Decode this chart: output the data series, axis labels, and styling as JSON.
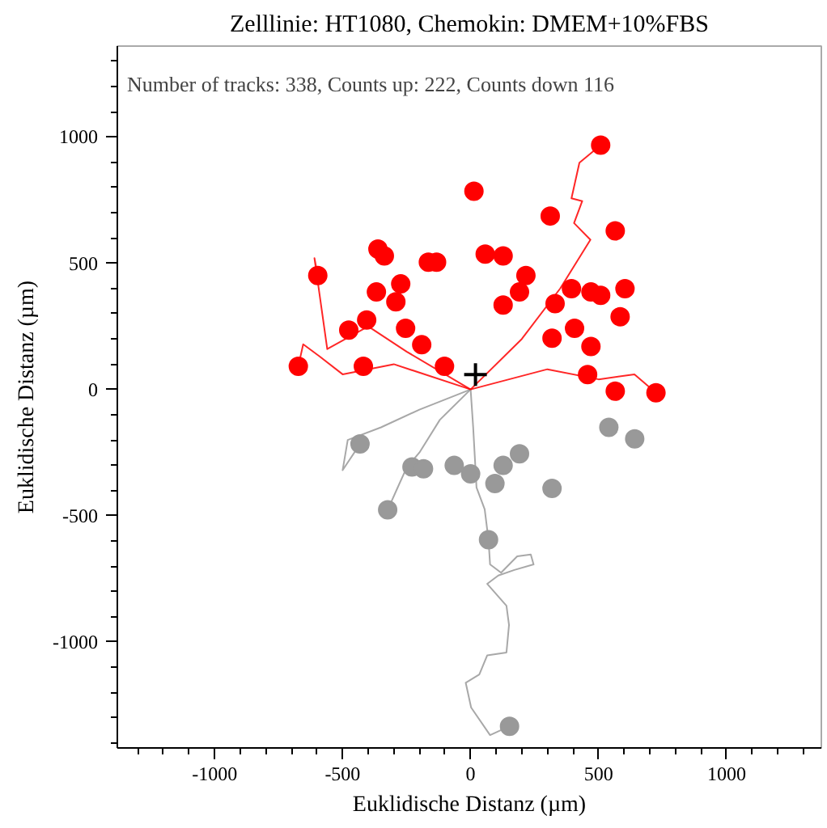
{
  "chart_data": {
    "type": "scatter",
    "title": "Zelllinie: HT1080, Chemokin: DMEM+10%FBS",
    "xlabel": "Euklidische Distanz (µm)",
    "ylabel": "Euklidische Distanz (µm)",
    "annotations": [
      "Number of tracks: 338, Counts up: 222, Counts down 116"
    ],
    "xlim": [
      -1380,
      1370
    ],
    "ylim": [
      -1420,
      1360
    ],
    "xticks": [
      -1000,
      -500,
      0,
      500,
      1000
    ],
    "yticks": [
      -1000,
      -500,
      0,
      500,
      1000
    ],
    "grid": false,
    "series": [
      {
        "type": "line",
        "color": "#999999",
        "x": [
          0,
          10,
          23,
          55,
          70,
          76,
          119,
          182,
          235,
          246,
          171,
          108,
          65,
          140,
          150,
          140,
          65,
          34,
          -19,
          2,
          76,
          152
        ],
        "values": [
          0,
          -150,
          -388,
          -475,
          -597,
          -693,
          -726,
          -661,
          -654,
          -693,
          -715,
          -737,
          -770,
          -857,
          -933,
          -1042,
          -1053,
          -1129,
          -1162,
          -1260,
          -1369,
          -1334
        ]
      },
      {
        "type": "line",
        "color": "#999999",
        "x": [
          0,
          -120,
          -200,
          -250,
          -290,
          -324
        ],
        "values": [
          0,
          -120,
          -250,
          -310,
          -400,
          -477
        ]
      },
      {
        "type": "line",
        "color": "#999999",
        "x": [
          0,
          -200,
          -350,
          -480,
          -500,
          -432
        ],
        "values": [
          0,
          -80,
          -150,
          -200,
          -320,
          -216
        ]
      },
      {
        "type": "line",
        "color": "#ff0000",
        "x": [
          0,
          200,
          350,
          468,
          404,
          436,
          394,
          425,
          508
        ],
        "values": [
          0,
          200,
          400,
          593,
          659,
          746,
          757,
          898,
          968
        ]
      },
      {
        "type": "line",
        "color": "#ff0000",
        "x": [
          0,
          -300,
          -500,
          -590,
          -654,
          -673
        ],
        "values": [
          0,
          100,
          60,
          131,
          179,
          92
        ]
      },
      {
        "type": "line",
        "color": "#ff0000",
        "x": [
          0,
          -250,
          -400,
          -560,
          -610,
          -597
        ],
        "values": [
          0,
          150,
          250,
          160,
          520,
          451
        ]
      },
      {
        "type": "line",
        "color": "#ff0000",
        "x": [
          0,
          300,
          500,
          640,
          724
        ],
        "values": [
          0,
          80,
          40,
          60,
          -13
        ]
      },
      {
        "marker": "circle",
        "color": "#999999",
        "x": [
          -432,
          -324,
          -229,
          -184,
          0,
          95,
          70,
          152,
          318,
          540,
          641,
          191,
          127,
          -64
        ],
        "values": [
          -216,
          -477,
          -307,
          -314,
          -334,
          -373,
          -595,
          -1334,
          -392,
          -150,
          -196,
          -255,
          -301,
          -301
        ]
      },
      {
        "marker": "circle",
        "color": "#ff0000",
        "x": [
          -673,
          -597,
          -476,
          -406,
          -419,
          -362,
          -337,
          -368,
          -273,
          -292,
          -165,
          -133,
          13,
          57,
          127,
          311,
          508,
          565,
          216,
          191,
          330,
          394,
          470,
          508,
          603,
          584,
          470,
          406,
          457,
          565,
          724,
          -254,
          -191,
          127,
          318,
          -102
        ],
        "values": [
          92,
          451,
          235,
          275,
          92,
          556,
          529,
          386,
          418,
          347,
          504,
          504,
          785,
          536,
          529,
          687,
          968,
          628,
          451,
          386,
          340,
          399,
          386,
          373,
          399,
          288,
          170,
          242,
          59,
          -7,
          -13,
          242,
          177,
          334,
          203,
          92
        ]
      },
      {
        "marker": "cross",
        "color": "#000000",
        "x": [
          19
        ],
        "values": [
          59
        ]
      }
    ]
  }
}
